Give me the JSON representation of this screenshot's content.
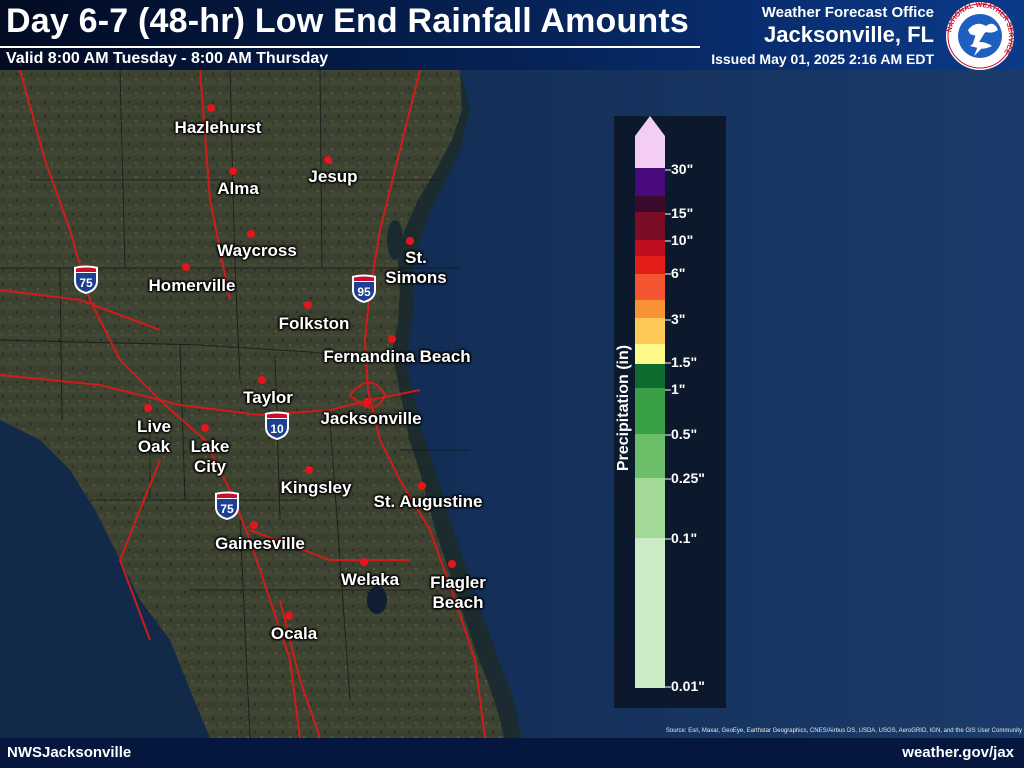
{
  "header": {
    "title": "Day 6-7 (48-hr) Low End Rainfall Amounts",
    "valid": "Valid 8:00 AM Tuesday - 8:00 AM Thursday",
    "office_heading": "Weather Forecast Office",
    "office_name": "Jacksonville, FL",
    "issued": "Issued May 01, 2025 2:16 AM EDT",
    "logo_text": "NATIONAL WEATHER SERVICE"
  },
  "footer": {
    "left": "NWSJacksonville",
    "right": "weather.gov/jax",
    "source": "Source: Esri, Maxar, GeoEye, Earthstar Geographics, CNES/Airbus DS, USDA, USGS, AeroGRID, IGN, and the GIS User Community"
  },
  "legend": {
    "title": "Precipitation (in)",
    "labels": [
      "30\"",
      "15\"",
      "10\"",
      "6\"",
      "3\"",
      "1.5\"",
      "1\"",
      "0.5\"",
      "0.25\"",
      "0.1\"",
      "0.01\""
    ],
    "colors": [
      "#f4cdf4",
      "#4b0a7b",
      "#3b0a2c",
      "#7c0d27",
      "#bd0d1e",
      "#e41d18",
      "#f25530",
      "#f79236",
      "#fec857",
      "#fefa89",
      "#0d6b2f",
      "#3aa048",
      "#6cbf68",
      "#a3d997",
      "#cdebc6"
    ]
  },
  "cities": [
    {
      "name": "Hazlehurst"
    },
    {
      "name": "Alma"
    },
    {
      "name": "Jesup"
    },
    {
      "name": "Waycross"
    },
    {
      "name": "St.\nSimons"
    },
    {
      "name": "Homerville"
    },
    {
      "name": "Folkston"
    },
    {
      "name": "Fernandina Beach"
    },
    {
      "name": "Taylor"
    },
    {
      "name": "Jacksonville"
    },
    {
      "name": "Live\nOak"
    },
    {
      "name": "Lake\nCity"
    },
    {
      "name": "Kingsley"
    },
    {
      "name": "St. Augustine"
    },
    {
      "name": "Gainesville"
    },
    {
      "name": "Welaka"
    },
    {
      "name": "Flagler\nBeach"
    },
    {
      "name": "Ocala"
    }
  ],
  "highways": [
    "75",
    "95",
    "10",
    "75"
  ],
  "colors": {
    "land": "#3a4030",
    "ocean": "#132a4a",
    "header": "#06245a",
    "city_dot": "#e8141b",
    "roads": "#d81a1a"
  }
}
